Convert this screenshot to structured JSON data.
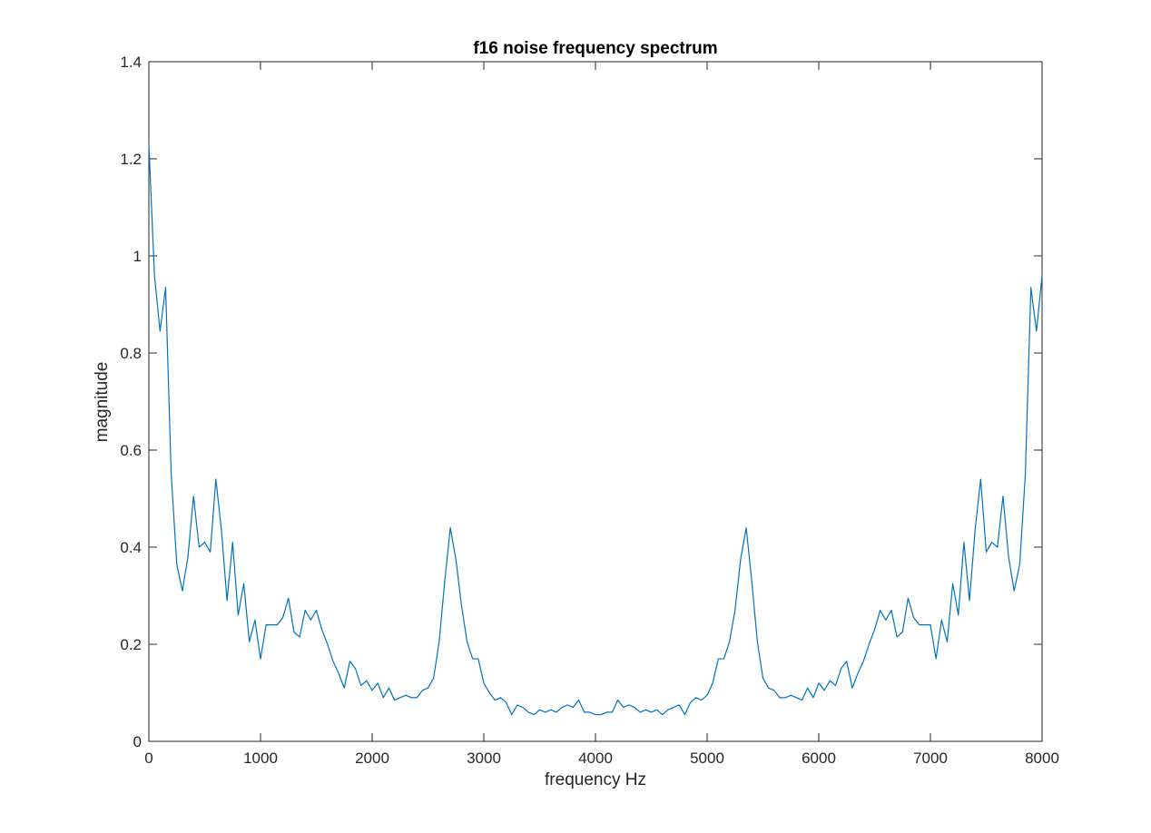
{
  "chart_data": {
    "type": "line",
    "title": "f16 noise frequency spectrum",
    "xlabel": "frequency Hz",
    "ylabel": "magnitude",
    "xlim": [
      0,
      8000
    ],
    "ylim": [
      0,
      1.4
    ],
    "x_ticks": [
      "0",
      "1000",
      "2000",
      "3000",
      "4000",
      "5000",
      "6000",
      "7000",
      "8000"
    ],
    "y_ticks": [
      "0",
      "0.2",
      "0.4",
      "0.6",
      "0.8",
      "1",
      "1.2",
      "1.4"
    ],
    "grid": false,
    "line_color": "#0072BD",
    "series": [
      {
        "x_start": 0,
        "x_step": 50,
        "values": [
          1.23,
          0.96,
          0.845,
          0.935,
          0.55,
          0.365,
          0.31,
          0.38,
          0.505,
          0.4,
          0.41,
          0.39,
          0.54,
          0.435,
          0.29,
          0.41,
          0.26,
          0.325,
          0.205,
          0.25,
          0.17,
          0.24,
          0.24,
          0.24,
          0.255,
          0.295,
          0.225,
          0.215,
          0.27,
          0.25,
          0.27,
          0.23,
          0.2,
          0.165,
          0.14,
          0.11,
          0.165,
          0.15,
          0.115,
          0.125,
          0.105,
          0.12,
          0.09,
          0.11,
          0.085,
          0.09,
          0.095,
          0.09,
          0.09,
          0.105,
          0.11,
          0.13,
          0.205,
          0.33,
          0.44,
          0.375,
          0.28,
          0.205,
          0.17,
          0.17,
          0.12,
          0.1,
          0.085,
          0.09,
          0.08,
          0.055,
          0.075,
          0.07,
          0.06,
          0.055,
          0.065,
          0.06,
          0.065,
          0.06,
          0.07,
          0.075,
          0.07,
          0.085,
          0.06,
          0.06,
          0.055,
          0.055,
          0.06,
          0.06,
          0.085,
          0.07,
          0.075,
          0.07,
          0.06,
          0.065,
          0.06,
          0.065,
          0.055,
          0.065,
          0.07,
          0.075,
          0.055,
          0.08,
          0.09,
          0.085,
          0.095,
          0.12,
          0.17,
          0.17,
          0.205,
          0.27,
          0.375,
          0.44,
          0.33,
          0.205,
          0.13,
          0.11,
          0.105,
          0.09,
          0.09,
          0.095,
          0.09,
          0.085,
          0.11,
          0.09,
          0.12,
          0.105,
          0.125,
          0.115,
          0.15,
          0.165,
          0.11,
          0.14,
          0.165,
          0.2,
          0.23,
          0.27,
          0.25,
          0.27,
          0.215,
          0.225,
          0.295,
          0.255,
          0.24,
          0.24,
          0.24,
          0.17,
          0.25,
          0.205,
          0.325,
          0.26,
          0.41,
          0.29,
          0.435,
          0.54,
          0.39,
          0.41,
          0.4,
          0.505,
          0.38,
          0.31,
          0.365,
          0.55,
          0.935,
          0.845,
          0.96
        ]
      }
    ]
  }
}
